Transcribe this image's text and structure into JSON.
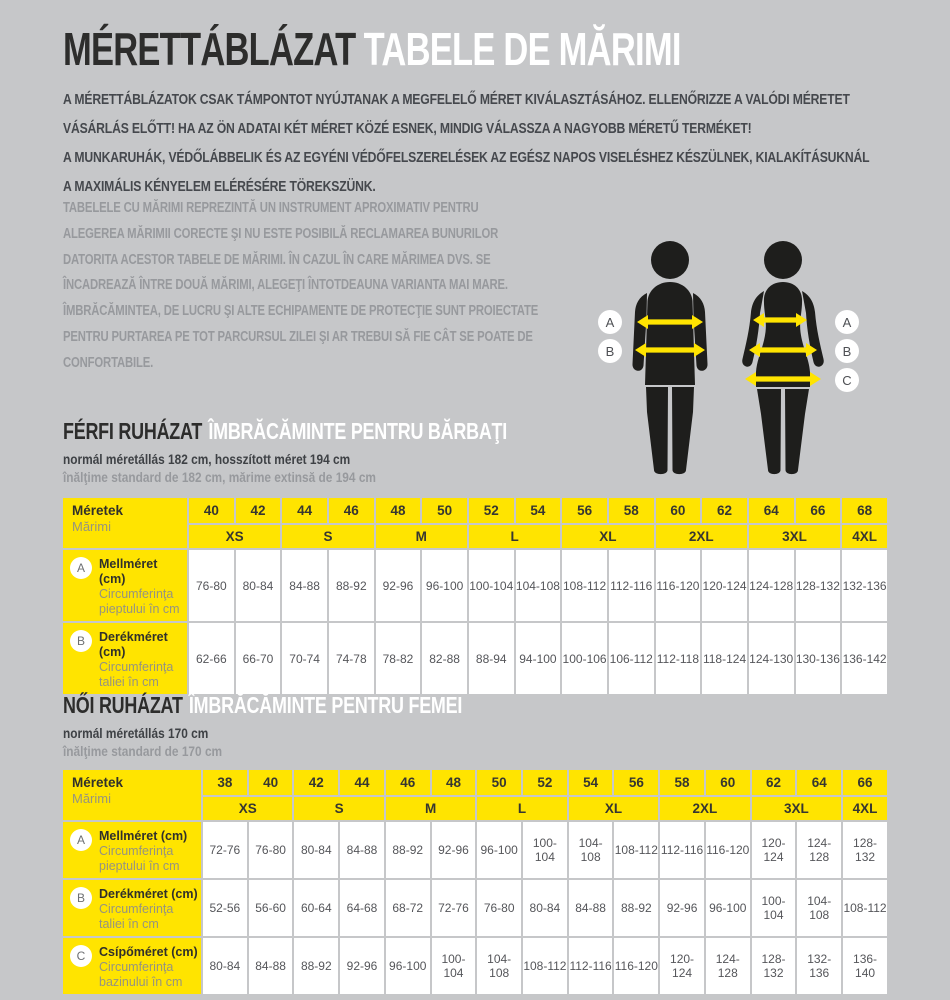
{
  "header": {
    "title_hu": "MÉRETTÁBLÁZAT",
    "title_ro": "TABELE DE MĂRIMI",
    "intro_hu": "A MÉRETTÁBLÁZATOK CSAK TÁMPONTOT NYÚJTANAK A MEGFELELŐ MÉRET KIVÁLASZTÁSÁHOZ. ELLENŐRIZZE A VALÓDI MÉRETET\nVÁSÁRLÁS ELŐTT! HA AZ ÖN ADATAI KÉT MÉRET KÖZÉ ESNEK, MINDIG VÁLASSZA A NAGYOBB MÉRETŰ TERMÉKET!\nA MUNKARUHÁK, VÉDŐLÁBBELIK ÉS AZ EGYÉNI VÉDŐFELSZERELÉSEK AZ EGÉSZ NAPOS VISELÉSHEZ KÉSZÜLNEK, KIALAKÍTÁSUKNÁL\nA MAXIMÁLIS KÉNYELEM ELÉRÉSÉRE TÖREKSZÜNK.",
    "intro_ro": "TABELELE CU MĂRIMI REPREZINTĂ UN INSTRUMENT APROXIMATIV PENTRU\nALEGEREA MĂRIMII CORECTE ŞI NU ESTE POSIBILĂ RECLAMAREA BUNURILOR\nDATORITA ACESTOR TABELE DE MĂRIMI. ÎN CAZUL ÎN CARE MĂRIMEA DVS. SE\nÎNCADREAZĂ ÎNTRE DOUĂ MĂRIMI, ALEGEŢI ÎNTOTDEAUNA VARIANTA MAI MARE.\nÎMBRĂCĂMINTEA, DE LUCRU ŞI ALTE ECHIPAMENTE DE PROTECŢIE SUNT PROIECTATE\nPENTRU PURTAREA PE TOT PARCURSUL ZILEI ŞI AR TREBUI SĂ FIE CÂT SE POATE DE\nCONFORTABILE."
  },
  "figure": {
    "left_labels": [
      "A",
      "B"
    ],
    "right_labels": [
      "A",
      "B",
      "C"
    ]
  },
  "colors": {
    "accent_yellow": "#ffe400",
    "background": "#c6c7c9",
    "silhouette": "#1e1e1c"
  },
  "men": {
    "heading_hu": "FÉRFI RUHÁZAT",
    "heading_ro": "ÎMBRĂCĂMINTE PENTRU BĂRBAŢI",
    "note_hu": "normál méretállás 182 cm, hosszított méret 194 cm",
    "note_ro": "înălţime standard de 182 cm, mărime extinsă de 194 cm",
    "table": {
      "corner_hu": "Méretek",
      "corner_ro": "Mărimi",
      "sizes": [
        "40",
        "42",
        "44",
        "46",
        "48",
        "50",
        "52",
        "54",
        "56",
        "58",
        "60",
        "62",
        "64",
        "66",
        "68"
      ],
      "groups": [
        {
          "label": "XS",
          "span": 2
        },
        {
          "label": "S",
          "span": 2
        },
        {
          "label": "M",
          "span": 2
        },
        {
          "label": "L",
          "span": 2
        },
        {
          "label": "XL",
          "span": 2
        },
        {
          "label": "2XL",
          "span": 2
        },
        {
          "label": "3XL",
          "span": 2
        },
        {
          "label": "4XL",
          "span": 1
        }
      ],
      "rows": [
        {
          "letter": "A",
          "label_hu": "Mellméret (cm)",
          "label_ro": "Circumferinţa pieptului în cm",
          "values": [
            "76-80",
            "80-84",
            "84-88",
            "88-92",
            "92-96",
            "96-100",
            "100-104",
            "104-108",
            "108-112",
            "112-116",
            "116-120",
            "120-124",
            "124-128",
            "128-132",
            "132-136"
          ]
        },
        {
          "letter": "B",
          "label_hu": "Derékméret (cm)",
          "label_ro": "Circumferinţa taliei în cm",
          "values": [
            "62-66",
            "66-70",
            "70-74",
            "74-78",
            "78-82",
            "82-88",
            "88-94",
            "94-100",
            "100-106",
            "106-112",
            "112-118",
            "118-124",
            "124-130",
            "130-136",
            "136-142"
          ]
        }
      ]
    }
  },
  "women": {
    "heading_hu": "NŐI RUHÁZAT",
    "heading_ro": "ÎMBRĂCĂMINTE PENTRU FEMEI",
    "note_hu": "normál méretállás 170 cm",
    "note_ro": "înălţime standard de 170 cm",
    "table": {
      "corner_hu": "Méretek",
      "corner_ro": "Mărimi",
      "sizes": [
        "38",
        "40",
        "42",
        "44",
        "46",
        "48",
        "50",
        "52",
        "54",
        "56",
        "58",
        "60",
        "62",
        "64",
        "66"
      ],
      "groups": [
        {
          "label": "XS",
          "span": 2
        },
        {
          "label": "S",
          "span": 2
        },
        {
          "label": "M",
          "span": 2
        },
        {
          "label": "L",
          "span": 2
        },
        {
          "label": "XL",
          "span": 2
        },
        {
          "label": "2XL",
          "span": 2
        },
        {
          "label": "3XL",
          "span": 2
        },
        {
          "label": "4XL",
          "span": 1
        }
      ],
      "rows": [
        {
          "letter": "A",
          "label_hu": "Mellméret (cm)",
          "label_ro": "Circumferinţa pieptului în cm",
          "values": [
            "72-76",
            "76-80",
            "80-84",
            "84-88",
            "88-92",
            "92-96",
            "96-100",
            "100-104",
            "104-108",
            "108-112",
            "112-116",
            "116-120",
            "120-124",
            "124-128",
            "128-132"
          ]
        },
        {
          "letter": "B",
          "label_hu": "Derékméret (cm)",
          "label_ro": "Circumferinţa taliei în cm",
          "values": [
            "52-56",
            "56-60",
            "60-64",
            "64-68",
            "68-72",
            "72-76",
            "76-80",
            "80-84",
            "84-88",
            "88-92",
            "92-96",
            "96-100",
            "100-104",
            "104-108",
            "108-112"
          ]
        },
        {
          "letter": "C",
          "label_hu": "Csípőméret (cm)",
          "label_ro": "Circumferinţa bazinului în cm",
          "values": [
            "80-84",
            "84-88",
            "88-92",
            "92-96",
            "96-100",
            "100-104",
            "104-108",
            "108-112",
            "112-116",
            "116-120",
            "120-124",
            "124-128",
            "128-132",
            "132-136",
            "136-140"
          ]
        }
      ]
    }
  }
}
